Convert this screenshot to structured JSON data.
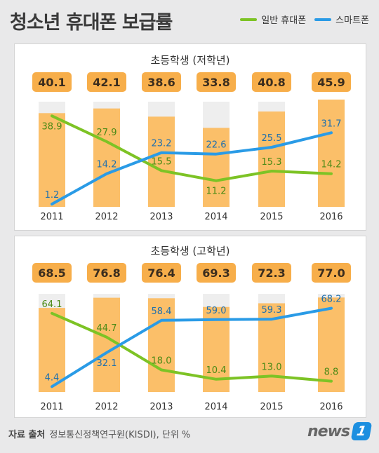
{
  "header": {
    "title": "청소년 휴대폰 보급률",
    "legend_feature": "일반 휴대폰",
    "legend_smart": "스마트폰"
  },
  "colors": {
    "feature": "#7dc325",
    "smart": "#2a9be6",
    "total_box": "#f7ae4a",
    "bar": "#fbbf69",
    "track": "#eeeeee"
  },
  "chart_data": [
    {
      "type": "bar+line",
      "title": "초등학생 (저학년)",
      "categories": [
        "2011",
        "2012",
        "2013",
        "2014",
        "2015",
        "2016"
      ],
      "totals": [
        40.1,
        42.1,
        38.6,
        33.8,
        40.8,
        45.9
      ],
      "series": [
        {
          "name": "일반 휴대폰",
          "type": "line",
          "values": [
            38.9,
            27.9,
            15.5,
            11.2,
            15.3,
            14.2
          ]
        },
        {
          "name": "스마트폰",
          "type": "line",
          "values": [
            1.2,
            14.2,
            23.2,
            22.6,
            25.5,
            31.7
          ]
        }
      ],
      "ylim": [
        0,
        45
      ]
    },
    {
      "type": "bar+line",
      "title": "초등학생 (고학년)",
      "categories": [
        "2011",
        "2012",
        "2013",
        "2014",
        "2015",
        "2016"
      ],
      "totals": [
        68.5,
        76.8,
        76.4,
        69.3,
        72.3,
        77.0
      ],
      "series": [
        {
          "name": "일반 휴대폰",
          "type": "line",
          "values": [
            64.1,
            44.7,
            18.0,
            10.4,
            13.0,
            8.8
          ]
        },
        {
          "name": "스마트폰",
          "type": "line",
          "values": [
            4.4,
            32.1,
            58.4,
            59.0,
            59.3,
            68.2
          ]
        }
      ],
      "ylim": [
        0,
        80
      ]
    }
  ],
  "footer": {
    "source_label": "자료 출처",
    "source_text": "정보통신정책연구원(KISDI), 단위 %"
  },
  "logo": {
    "text": "news",
    "badge": "1"
  }
}
